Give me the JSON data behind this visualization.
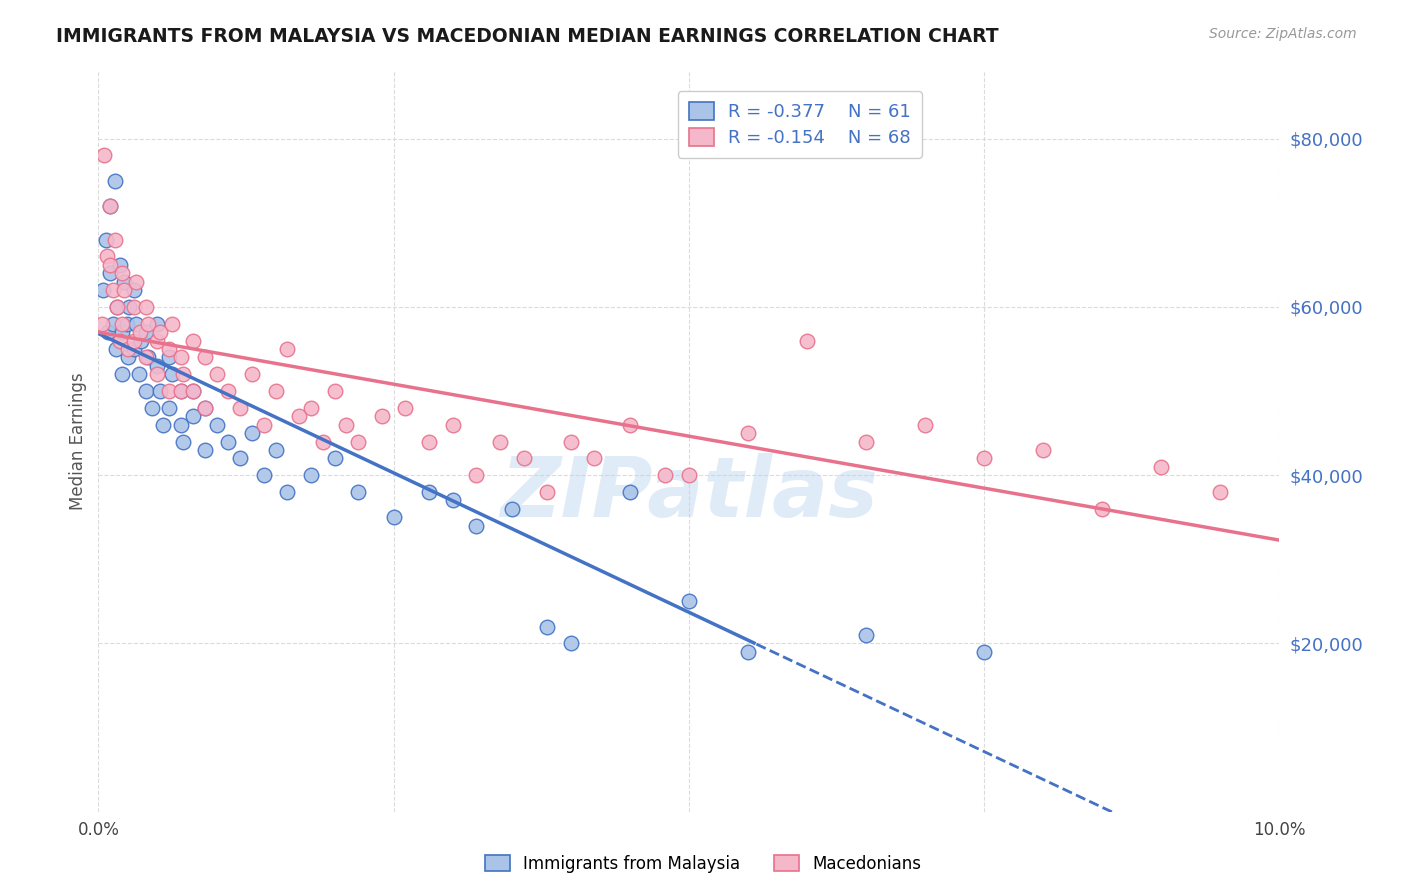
{
  "title": "IMMIGRANTS FROM MALAYSIA VS MACEDONIAN MEDIAN EARNINGS CORRELATION CHART",
  "source": "Source: ZipAtlas.com",
  "ylabel": "Median Earnings",
  "y_ticks": [
    20000,
    40000,
    60000,
    80000
  ],
  "y_tick_labels": [
    "$20,000",
    "$40,000",
    "$60,000",
    "$80,000"
  ],
  "xlim": [
    0.0,
    0.1
  ],
  "ylim": [
    0,
    88000
  ],
  "series": [
    {
      "label": "Immigrants from Malaysia",
      "R": -0.377,
      "N": 61,
      "color_scatter": "#aac4e8",
      "color_line": "#4472c4",
      "legend_color": "#aac4e8",
      "x": [
        0.0004,
        0.0006,
        0.0008,
        0.001,
        0.001,
        0.0012,
        0.0014,
        0.0015,
        0.0016,
        0.0018,
        0.002,
        0.002,
        0.0022,
        0.0024,
        0.0025,
        0.0026,
        0.003,
        0.003,
        0.0032,
        0.0034,
        0.0036,
        0.004,
        0.004,
        0.0042,
        0.0045,
        0.005,
        0.005,
        0.0052,
        0.0055,
        0.006,
        0.006,
        0.0062,
        0.007,
        0.007,
        0.0072,
        0.008,
        0.008,
        0.009,
        0.009,
        0.01,
        0.011,
        0.012,
        0.013,
        0.014,
        0.015,
        0.016,
        0.018,
        0.02,
        0.022,
        0.025,
        0.028,
        0.03,
        0.032,
        0.035,
        0.038,
        0.04,
        0.045,
        0.05,
        0.055,
        0.065,
        0.075
      ],
      "y": [
        62000,
        68000,
        57000,
        72000,
        64000,
        58000,
        75000,
        55000,
        60000,
        65000,
        57000,
        52000,
        63000,
        58000,
        54000,
        60000,
        62000,
        55000,
        58000,
        52000,
        56000,
        57000,
        50000,
        54000,
        48000,
        58000,
        53000,
        50000,
        46000,
        54000,
        48000,
        52000,
        50000,
        46000,
        44000,
        50000,
        47000,
        48000,
        43000,
        46000,
        44000,
        42000,
        45000,
        40000,
        43000,
        38000,
        40000,
        42000,
        38000,
        35000,
        38000,
        37000,
        34000,
        36000,
        22000,
        20000,
        38000,
        25000,
        19000,
        21000,
        19000
      ]
    },
    {
      "label": "Macedonians",
      "R": -0.154,
      "N": 68,
      "color_scatter": "#f5b8cb",
      "color_line": "#e8728c",
      "legend_color": "#f5b8cb",
      "x": [
        0.0003,
        0.0005,
        0.0007,
        0.001,
        0.001,
        0.0012,
        0.0014,
        0.0016,
        0.0018,
        0.002,
        0.002,
        0.0022,
        0.0025,
        0.003,
        0.003,
        0.0032,
        0.0035,
        0.004,
        0.004,
        0.0042,
        0.005,
        0.005,
        0.0052,
        0.006,
        0.006,
        0.0062,
        0.007,
        0.007,
        0.0072,
        0.008,
        0.008,
        0.009,
        0.009,
        0.01,
        0.011,
        0.012,
        0.013,
        0.014,
        0.015,
        0.016,
        0.017,
        0.018,
        0.019,
        0.02,
        0.021,
        0.022,
        0.024,
        0.026,
        0.028,
        0.03,
        0.032,
        0.034,
        0.036,
        0.038,
        0.04,
        0.042,
        0.045,
        0.048,
        0.05,
        0.055,
        0.06,
        0.065,
        0.07,
        0.075,
        0.08,
        0.085,
        0.09,
        0.095
      ],
      "y": [
        58000,
        78000,
        66000,
        72000,
        65000,
        62000,
        68000,
        60000,
        56000,
        64000,
        58000,
        62000,
        55000,
        60000,
        56000,
        63000,
        57000,
        60000,
        54000,
        58000,
        56000,
        52000,
        57000,
        55000,
        50000,
        58000,
        54000,
        50000,
        52000,
        56000,
        50000,
        54000,
        48000,
        52000,
        50000,
        48000,
        52000,
        46000,
        50000,
        55000,
        47000,
        48000,
        44000,
        50000,
        46000,
        44000,
        47000,
        48000,
        44000,
        46000,
        40000,
        44000,
        42000,
        38000,
        44000,
        42000,
        46000,
        40000,
        40000,
        45000,
        56000,
        44000,
        46000,
        42000,
        43000,
        36000,
        41000,
        38000
      ]
    }
  ],
  "watermark": "ZIPatlas",
  "background_color": "#ffffff",
  "grid_color": "#d8d8d8"
}
